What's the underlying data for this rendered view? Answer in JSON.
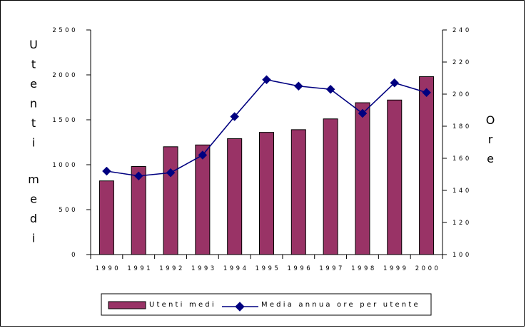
{
  "chart_data": {
    "type": "bar+line",
    "categories": [
      "1990",
      "1991",
      "1992",
      "1993",
      "1994",
      "1995",
      "1996",
      "1997",
      "1998",
      "1999",
      "2000"
    ],
    "series": [
      {
        "name": "Utenti medi",
        "type": "bar",
        "axis": "left",
        "color": "#993366",
        "values": [
          820,
          980,
          1200,
          1220,
          1290,
          1360,
          1390,
          1510,
          1690,
          1720,
          1980
        ]
      },
      {
        "name": "Media annua ore per utente",
        "type": "line",
        "axis": "right",
        "color": "#000080",
        "marker": "diamond",
        "values": [
          152,
          149,
          151,
          162,
          186,
          209,
          205,
          203,
          188,
          207,
          201
        ]
      }
    ],
    "y_left": {
      "title": "Utenti medi",
      "ticks": [
        "0",
        "500",
        "1000",
        "1500",
        "2000",
        "2500"
      ],
      "ylim": [
        0,
        2500
      ]
    },
    "y_right": {
      "title": "Ore",
      "ticks": [
        "100",
        "120",
        "140",
        "160",
        "180",
        "200",
        "220",
        "240"
      ],
      "ylim": [
        100,
        240
      ]
    },
    "x_ticks": [
      "1990",
      "1991",
      "1992",
      "1993",
      "1994",
      "1995",
      "1996",
      "1997",
      "1998",
      "1999",
      "2000"
    ],
    "legend_position": "bottom",
    "grid": false
  }
}
